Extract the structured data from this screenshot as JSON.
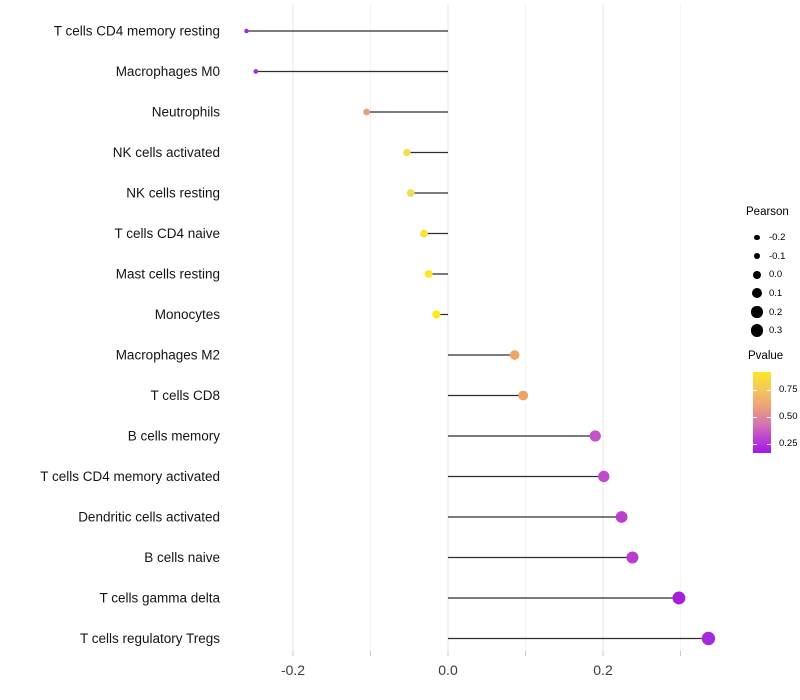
{
  "page": {
    "background": "#ffffff"
  },
  "chart_data": {
    "type": "bar",
    "variant": "horizontal_lollipop",
    "title": "",
    "xlabel": "",
    "ylabel": "",
    "legend_position": "right",
    "x_axis": {
      "ticks_labeled": [
        "-0.2",
        "0.0",
        "0.2"
      ],
      "tick_values_labeled": [
        -0.2,
        0.0,
        0.2
      ],
      "tick_values_all": [
        -0.2,
        -0.1,
        0.0,
        0.1,
        0.2,
        0.3
      ],
      "range": [
        -0.27,
        0.375
      ]
    },
    "grid": {
      "major_values": [
        -0.2,
        0.0,
        0.2
      ],
      "minor_values": [
        -0.1,
        0.1,
        0.3
      ]
    },
    "baseline_value": 0.0,
    "rows": [
      {
        "category": "T cells CD4 memory resting",
        "pearson": -0.26,
        "pvalue_est": 0.12,
        "color": "#A42ED5"
      },
      {
        "category": "Macrophages M0",
        "pearson": -0.248,
        "pvalue_est": 0.12,
        "color": "#A42ED5"
      },
      {
        "category": "Neutrophils",
        "pearson": -0.105,
        "pvalue_est": 0.55,
        "color": "#EC9E78"
      },
      {
        "category": "NK cells activated",
        "pearson": -0.053,
        "pvalue_est": 0.79,
        "color": "#F2DE53"
      },
      {
        "category": "NK cells resting",
        "pearson": -0.048,
        "pvalue_est": 0.79,
        "color": "#F1DC58"
      },
      {
        "category": "T cells CD4 naive",
        "pearson": -0.031,
        "pvalue_est": 0.86,
        "color": "#F8E43C"
      },
      {
        "category": "Mast cells resting",
        "pearson": -0.025,
        "pvalue_est": 0.89,
        "color": "#FAE72B"
      },
      {
        "category": "Monocytes",
        "pearson": -0.015,
        "pvalue_est": 0.92,
        "color": "#FCE91B"
      },
      {
        "category": "Macrophages M2",
        "pearson": 0.086,
        "pvalue_est": 0.56,
        "color": "#F0A766"
      },
      {
        "category": "T cells CD8",
        "pearson": 0.097,
        "pvalue_est": 0.54,
        "color": "#EFA161"
      },
      {
        "category": "B cells memory",
        "pearson": 0.19,
        "pvalue_est": 0.31,
        "color": "#C553C8"
      },
      {
        "category": "T cells CD4 memory activated",
        "pearson": 0.201,
        "pvalue_est": 0.29,
        "color": "#C04BCB"
      },
      {
        "category": "Dendritic cells activated",
        "pearson": 0.224,
        "pvalue_est": 0.26,
        "color": "#BC40CC"
      },
      {
        "category": "B cells naive",
        "pearson": 0.238,
        "pvalue_est": 0.25,
        "color": "#B93CCE"
      },
      {
        "category": "T cells gamma delta",
        "pearson": 0.298,
        "pvalue_est": 0.13,
        "color": "#A51FD9"
      },
      {
        "category": "T cells regulatory Tregs",
        "pearson": 0.336,
        "pvalue_est": 0.1,
        "color": "#A42AE0"
      }
    ],
    "legends": {
      "size": {
        "title": "Pearson",
        "entry_labels": [
          "-0.2",
          "-0.1",
          "0.0",
          "0.1",
          "0.2",
          "0.3"
        ],
        "entry_values": [
          -0.2,
          -0.1,
          0.0,
          0.1,
          0.2,
          0.3
        ],
        "dot_color": "#000000"
      },
      "color": {
        "title": "Pvalue",
        "tick_labels": [
          "0.75",
          "0.50",
          "0.25"
        ],
        "tick_values": [
          0.75,
          0.5,
          0.25
        ],
        "gradient_stops": [
          {
            "pos": 0,
            "color": "#FAE723"
          },
          {
            "pos": 20,
            "color": "#F4C95C"
          },
          {
            "pos": 42,
            "color": "#EDA276"
          },
          {
            "pos": 64,
            "color": "#D476AE"
          },
          {
            "pos": 82,
            "color": "#BB42D2"
          },
          {
            "pos": 100,
            "color": "#A317E5"
          }
        ]
      }
    },
    "styles": {
      "stem_color": "#2D2D2D",
      "grid_major_color": "#E7E7E7",
      "grid_minor_color": "#F4F4F4",
      "tick_color": "#C9C9C9",
      "axis_text_color": "#3C3C3C",
      "category_text_color": "#141414"
    }
  }
}
